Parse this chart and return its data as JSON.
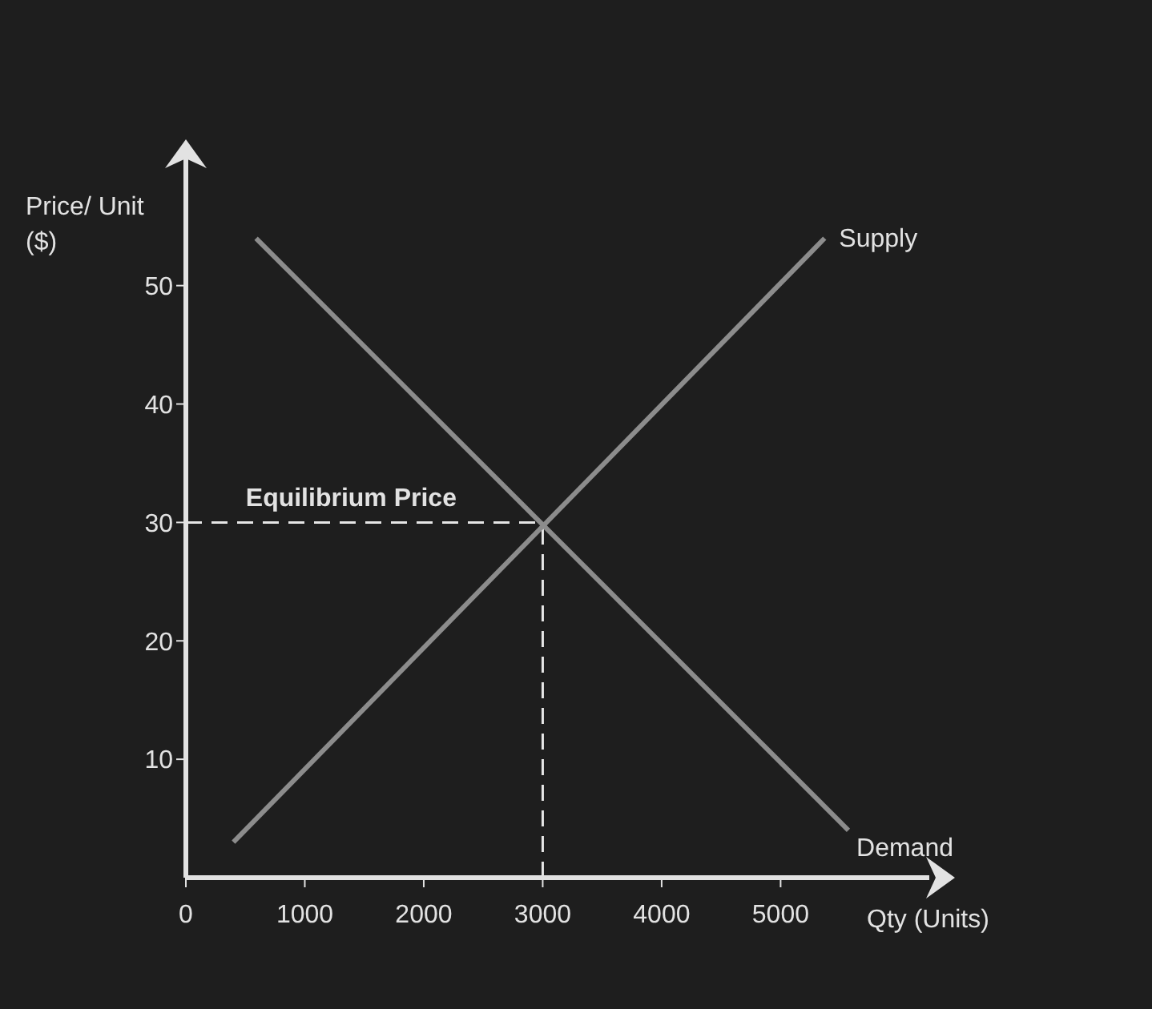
{
  "chart_data": {
    "type": "line",
    "xlabel": "Qty (Units)",
    "ylabel": "Price/ Unit ($)",
    "series": [
      {
        "name": "Supply",
        "color": "#8c8c8c",
        "x": [
          400,
          5370
        ],
        "values": [
          3,
          54
        ]
      },
      {
        "name": "Demand",
        "color": "#8c8c8c",
        "x": [
          590,
          5570
        ],
        "values": [
          54,
          4
        ]
      }
    ],
    "xlim": [
      0,
      6250
    ],
    "ylim": [
      0,
      61
    ],
    "xticks": [
      0,
      1000,
      2000,
      3000,
      4000,
      5000
    ],
    "yticks": [
      10,
      20,
      30,
      40,
      50
    ],
    "ref_lines": [
      {
        "axis": "y",
        "value": 30,
        "color": "#e6e6e6",
        "line_style": "dashed"
      },
      {
        "axis": "x",
        "value": 3000,
        "color": "#e6e6e6",
        "line_style": "dashed"
      }
    ],
    "annotations": [
      {
        "text": "Equilibrium Price",
        "x": 1390,
        "y": 30
      }
    ],
    "grid": false,
    "legend": false,
    "marker": "none",
    "line_style": "solid"
  }
}
